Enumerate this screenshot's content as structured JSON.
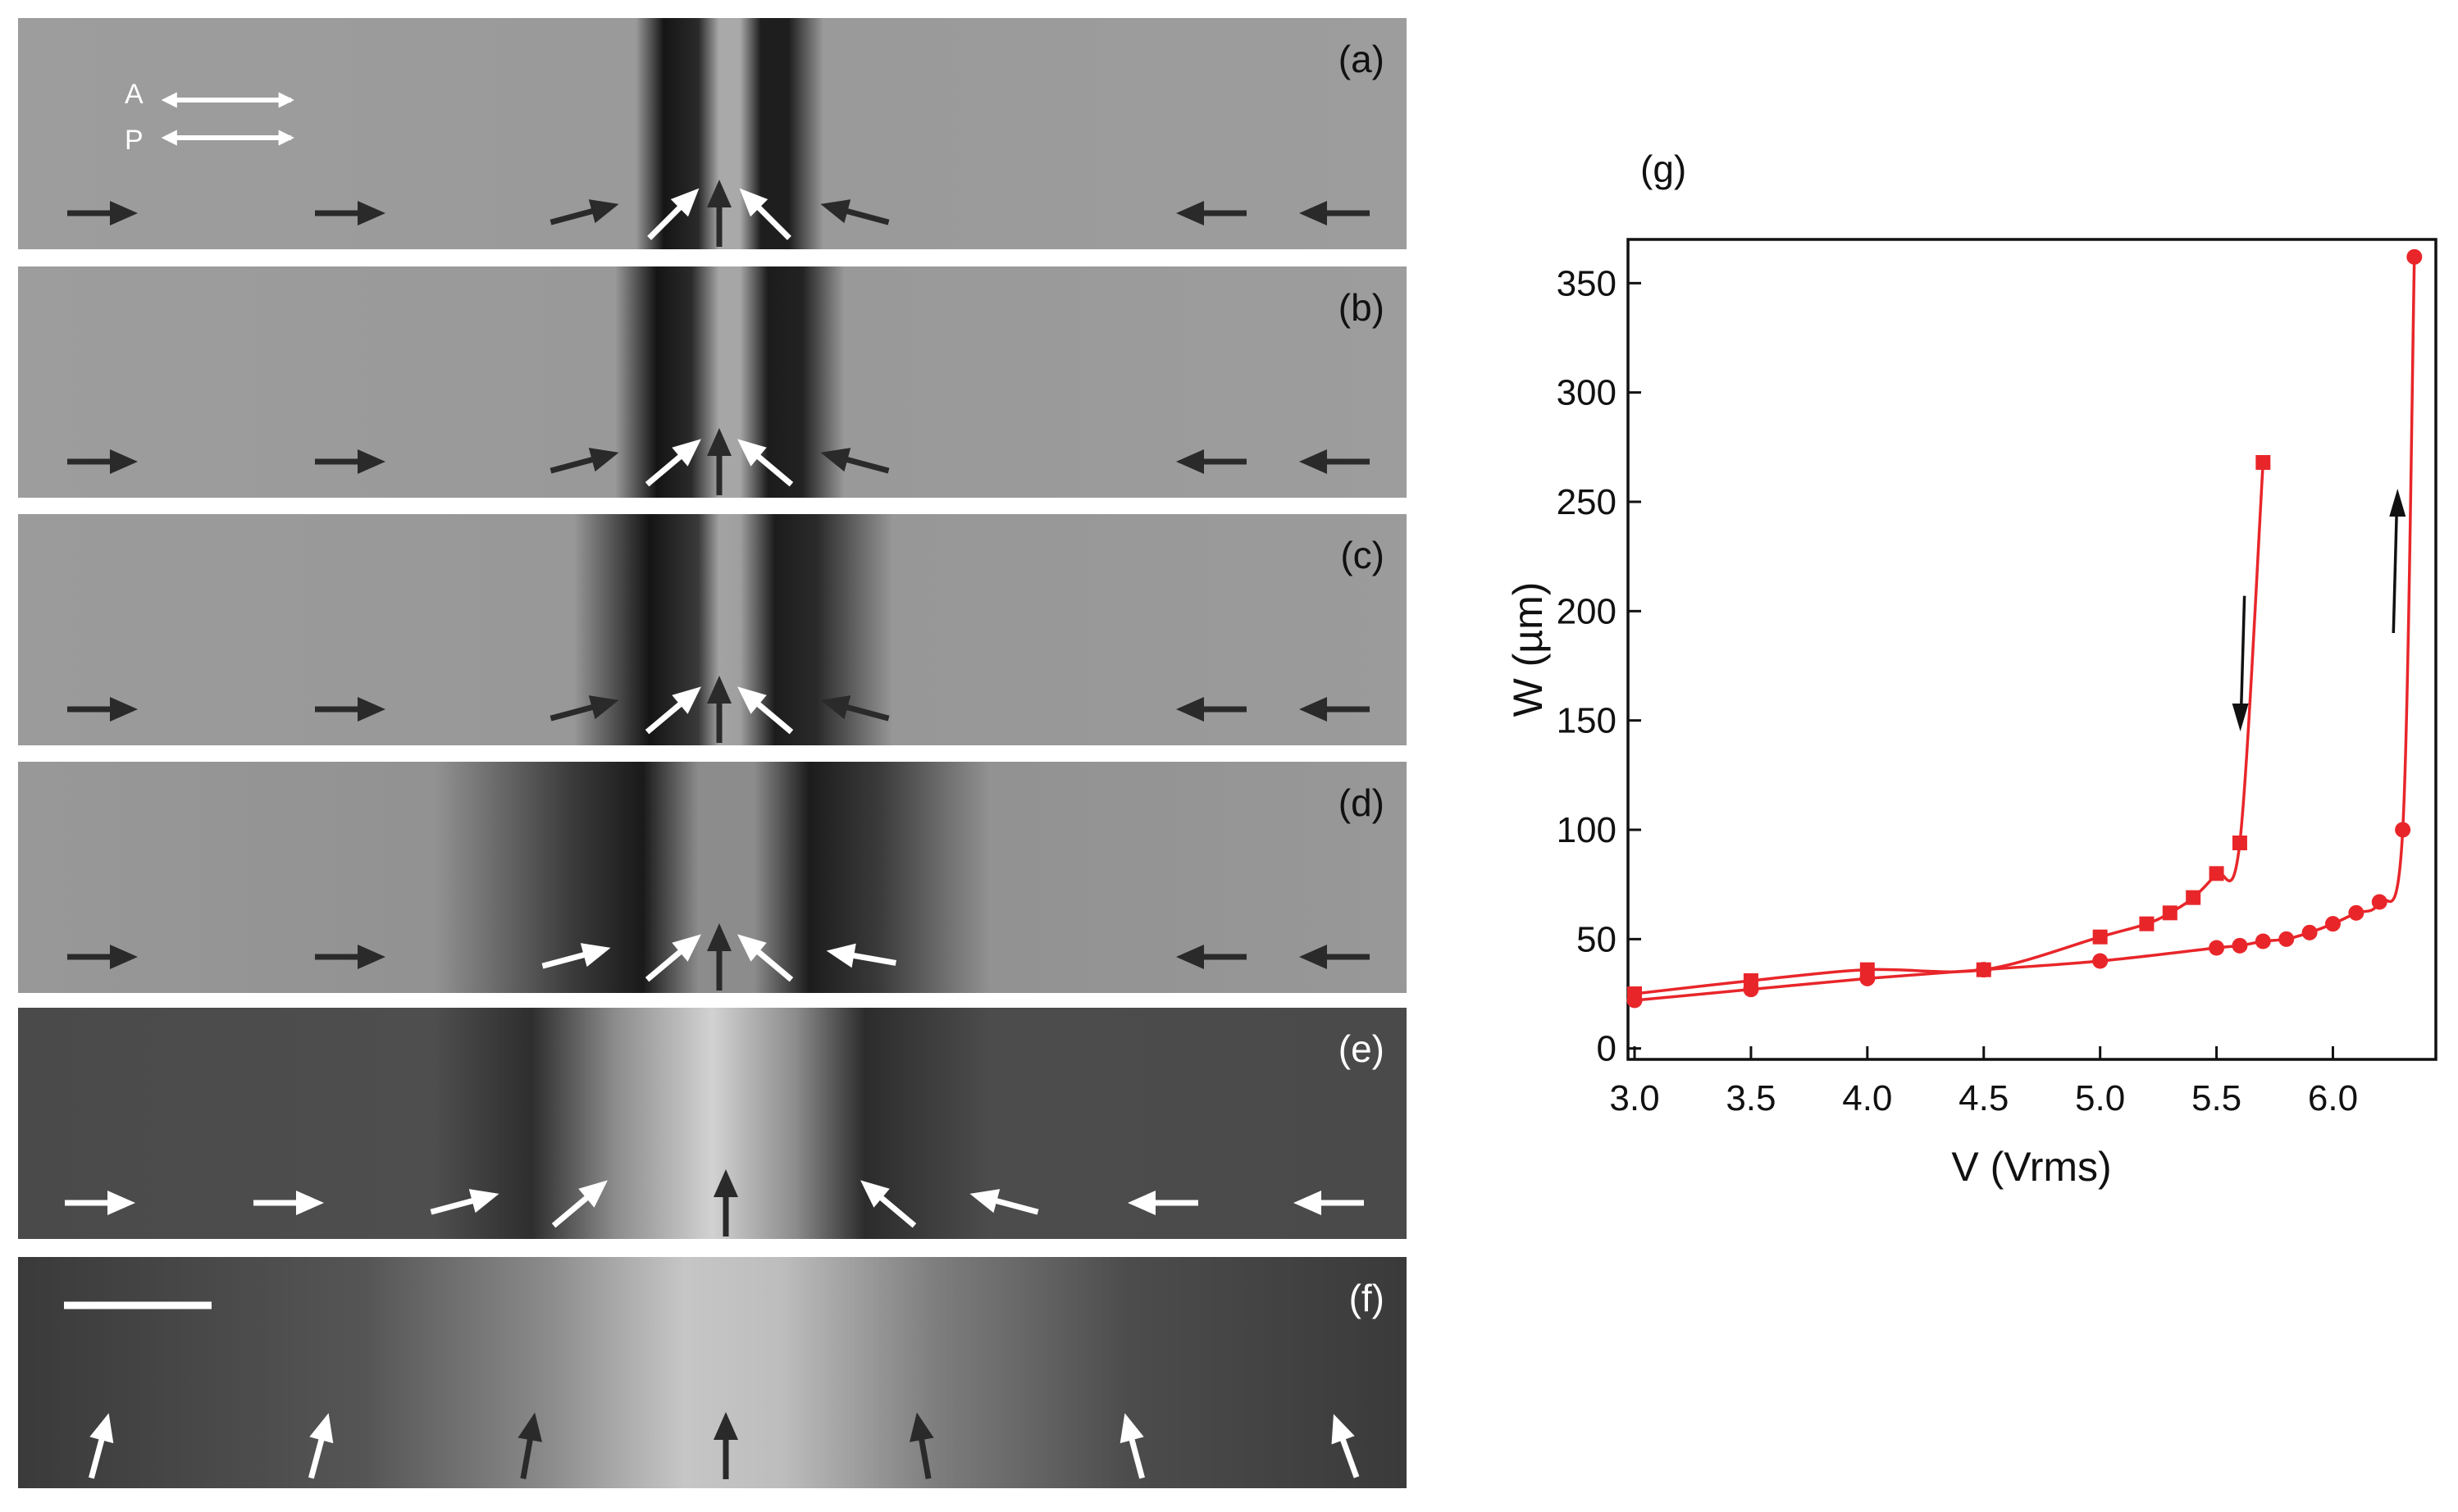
{
  "panels": [
    {
      "label": "(a)",
      "brightness": "light-gray",
      "director_arrows": [
        {
          "dir": 0,
          "color": "#2a2a2a"
        },
        {
          "dir": 0,
          "color": "#2a2a2a"
        },
        {
          "dir": 15,
          "color": "#2a2a2a"
        },
        {
          "dir": 45,
          "color": "#ffffff"
        },
        {
          "dir": 90,
          "color": "#2a2a2a"
        },
        {
          "dir": 135,
          "color": "#ffffff"
        },
        {
          "dir": 165,
          "color": "#2a2a2a"
        },
        {
          "dir": 180,
          "color": "#2a2a2a"
        },
        {
          "dir": 180,
          "color": "#2a2a2a"
        }
      ]
    },
    {
      "label": "(b)",
      "brightness": "light-gray",
      "director_arrows": [
        {
          "dir": 0,
          "color": "#2a2a2a"
        },
        {
          "dir": 0,
          "color": "#2a2a2a"
        },
        {
          "dir": 15,
          "color": "#2a2a2a"
        },
        {
          "dir": 40,
          "color": "#ffffff"
        },
        {
          "dir": 90,
          "color": "#2a2a2a"
        },
        {
          "dir": 140,
          "color": "#ffffff"
        },
        {
          "dir": 165,
          "color": "#2a2a2a"
        },
        {
          "dir": 180,
          "color": "#2a2a2a"
        },
        {
          "dir": 180,
          "color": "#2a2a2a"
        }
      ]
    },
    {
      "label": "(c)",
      "brightness": "light-gray",
      "director_arrows": [
        {
          "dir": 0,
          "color": "#2a2a2a"
        },
        {
          "dir": 0,
          "color": "#2a2a2a"
        },
        {
          "dir": 15,
          "color": "#2a2a2a"
        },
        {
          "dir": 40,
          "color": "#ffffff"
        },
        {
          "dir": 90,
          "color": "#2a2a2a"
        },
        {
          "dir": 140,
          "color": "#ffffff"
        },
        {
          "dir": 165,
          "color": "#2a2a2a"
        },
        {
          "dir": 180,
          "color": "#2a2a2a"
        },
        {
          "dir": 180,
          "color": "#2a2a2a"
        }
      ]
    },
    {
      "label": "(d)",
      "brightness": "light-gray",
      "director_arrows": [
        {
          "dir": 0,
          "color": "#2a2a2a"
        },
        {
          "dir": 0,
          "color": "#2a2a2a"
        },
        {
          "dir": 15,
          "color": "#ffffff"
        },
        {
          "dir": 40,
          "color": "#ffffff"
        },
        {
          "dir": 90,
          "color": "#2a2a2a"
        },
        {
          "dir": 140,
          "color": "#ffffff"
        },
        {
          "dir": 170,
          "color": "#ffffff"
        },
        {
          "dir": 180,
          "color": "#2a2a2a"
        },
        {
          "dir": 180,
          "color": "#2a2a2a"
        }
      ]
    },
    {
      "label": "(e)",
      "brightness": "dark-gray",
      "director_arrows": [
        {
          "dir": 0,
          "color": "#ffffff"
        },
        {
          "dir": 0,
          "color": "#ffffff"
        },
        {
          "dir": 15,
          "color": "#ffffff"
        },
        {
          "dir": 40,
          "color": "#ffffff"
        },
        {
          "dir": 90,
          "color": "#2a2a2a"
        },
        {
          "dir": 140,
          "color": "#ffffff"
        },
        {
          "dir": 165,
          "color": "#ffffff"
        },
        {
          "dir": 180,
          "color": "#ffffff"
        },
        {
          "dir": 180,
          "color": "#ffffff"
        }
      ]
    },
    {
      "label": "(f)",
      "brightness": "dark-gray",
      "director_arrows": [
        {
          "dir": 75,
          "color": "#ffffff"
        },
        {
          "dir": 75,
          "color": "#ffffff"
        },
        {
          "dir": 80,
          "color": "#2a2a2a"
        },
        {
          "dir": 90,
          "color": "#2a2a2a"
        },
        {
          "dir": 100,
          "color": "#2a2a2a"
        },
        {
          "dir": 105,
          "color": "#ffffff"
        },
        {
          "dir": 110,
          "color": "#ffffff"
        }
      ]
    }
  ],
  "polarizers": {
    "analyzer_label": "A",
    "polarizer_label": "P"
  },
  "scale_bar": true,
  "chart_data": {
    "type": "line",
    "panel_label": "(g)",
    "xlabel": "V (Vrms)",
    "ylabel": "W (µm)",
    "xlim": [
      3.0,
      6.4
    ],
    "ylim": [
      -5,
      370
    ],
    "xticks": [
      "3.0",
      "3.5",
      "4.0",
      "4.5",
      "5.0",
      "5.5",
      "6.0"
    ],
    "yticks": [
      "0",
      "50",
      "100",
      "150",
      "200",
      "250",
      "300",
      "350"
    ],
    "series": [
      {
        "marker": "square",
        "color": "#e8262a",
        "x": [
          3.0,
          3.5,
          4.0,
          4.5,
          5.0,
          5.2,
          5.3,
          5.4,
          5.5,
          5.6,
          5.7
        ],
        "y": [
          25,
          31,
          36,
          36,
          51,
          57,
          62,
          69,
          80,
          94,
          268
        ]
      },
      {
        "marker": "circle",
        "color": "#e8262a",
        "x": [
          3.0,
          3.5,
          4.0,
          4.5,
          5.0,
          5.5,
          5.6,
          5.7,
          5.8,
          5.9,
          6.0,
          6.1,
          6.2,
          6.3,
          6.35
        ],
        "y": [
          22,
          27,
          32,
          36,
          40,
          46,
          47,
          49,
          50,
          53,
          57,
          62,
          67,
          100,
          362
        ]
      }
    ],
    "annotations": [
      {
        "type": "arrow",
        "direction": "down"
      },
      {
        "type": "arrow",
        "direction": "up"
      }
    ]
  }
}
